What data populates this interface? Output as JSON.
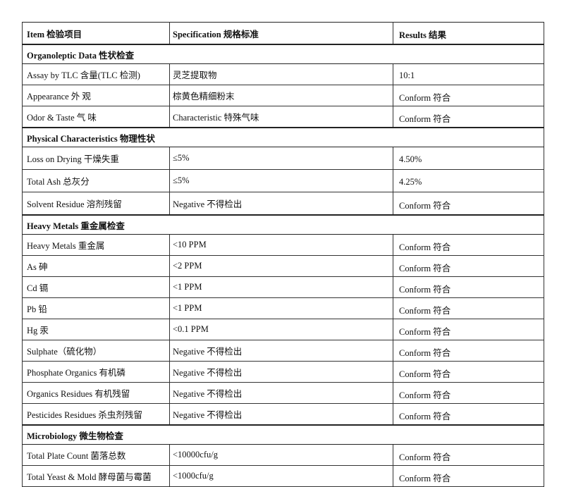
{
  "header": {
    "item": "Item 检验项目",
    "specification": "Specification 规格标准",
    "results": "Results 结果"
  },
  "sections": [
    {
      "title": "Organoleptic Data 性状检查",
      "rows": [
        {
          "item": "Assay by TLC 含量(TLC 检测)",
          "spec": "灵芝提取物",
          "result": "10:1"
        },
        {
          "item": "Appearance 外 观",
          "spec": "棕黄色精细粉末",
          "result": "Conform 符合"
        },
        {
          "item": "Odor & Taste 气 味",
          "spec": "Characteristic 特殊气味",
          "result": "Conform 符合"
        }
      ]
    },
    {
      "title": "Physical Characteristics 物理性状",
      "rows": [
        {
          "item": "Loss on Drying    干燥失重",
          "spec": "≤5%",
          "result": "4.50%"
        },
        {
          "item": "Total Ash    总灰分",
          "spec": "≤5%",
          "result": "4.25%"
        },
        {
          "item": "Solvent Residue 溶剂残留",
          "spec": "Negative 不得检出",
          "result": "Conform 符合"
        }
      ]
    },
    {
      "title": "Heavy Metals 重金属检查",
      "rows": [
        {
          "item": "Heavy Metals 重金属",
          "spec": "<10 PPM",
          "result": "Conform 符合"
        },
        {
          "item": "As 砷",
          "spec": "<2 PPM",
          "result": "Conform 符合"
        },
        {
          "item": "Cd 镉",
          "spec": "<1 PPM",
          "result": "Conform 符合"
        },
        {
          "item": "Pb 铅",
          "spec": "<1 PPM",
          "result": "Conform 符合"
        },
        {
          "item": "Hg 汞",
          "spec": "<0.1 PPM",
          "result": "Conform 符合"
        },
        {
          "item": "Sulphate（硫化物）",
          "spec": "Negative 不得检出",
          "result": "Conform 符合"
        },
        {
          "item": "Phosphate Organics 有机磷",
          "spec": "Negative 不得检出",
          "result": "Conform 符合"
        },
        {
          "item": "Organics Residues 有机残留",
          "spec": "Negative 不得检出",
          "result": "Conform 符合"
        },
        {
          "item": "Pesticides Residues 杀虫剂残留",
          "spec": "Negative 不得检出",
          "result": "Conform 符合"
        }
      ]
    },
    {
      "title": "Microbiology 微生物检查",
      "rows": [
        {
          "item": "Total Plate Count    菌落总数",
          "spec": "<10000cfu/g",
          "result": "Conform 符合"
        },
        {
          "item": "Total Yeast & Mold 酵母菌与霉菌",
          "spec": "<1000cfu/g",
          "result": "Conform 符合"
        }
      ]
    }
  ]
}
